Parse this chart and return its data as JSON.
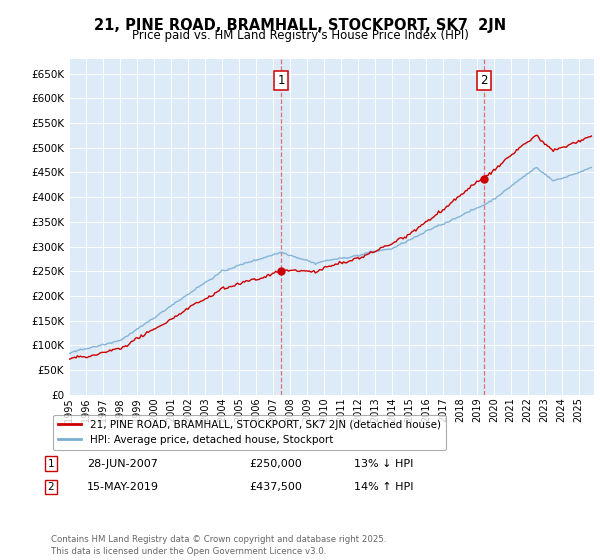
{
  "title": "21, PINE ROAD, BRAMHALL, STOCKPORT, SK7  2JN",
  "subtitle": "Price paid vs. HM Land Registry's House Price Index (HPI)",
  "line1_label": "21, PINE ROAD, BRAMHALL, STOCKPORT, SK7 2JN (detached house)",
  "line2_label": "HPI: Average price, detached house, Stockport",
  "line1_color": "#cc0000",
  "line2_color": "#7aafd4",
  "background_color": "#ddeaf7",
  "grid_color": "#ffffff",
  "annotation1": {
    "num": "1",
    "date": "28-JUN-2007",
    "price": "£250,000",
    "hpi": "13% ↓ HPI",
    "year": 2007.47
  },
  "annotation2": {
    "num": "2",
    "date": "15-MAY-2019",
    "price": "£437,500",
    "hpi": "14% ↑ HPI",
    "year": 2019.37
  },
  "footer": "Contains HM Land Registry data © Crown copyright and database right 2025.\nThis data is licensed under the Open Government Licence v3.0.",
  "ylim": [
    0,
    680000
  ],
  "yticks": [
    0,
    50000,
    100000,
    150000,
    200000,
    250000,
    300000,
    350000,
    400000,
    450000,
    500000,
    550000,
    600000,
    650000
  ],
  "xmin": 1995,
  "xmax": 2025.9,
  "xlabel_years": [
    1995,
    1996,
    1997,
    1998,
    1999,
    2000,
    2001,
    2002,
    2003,
    2004,
    2005,
    2006,
    2007,
    2008,
    2009,
    2010,
    2011,
    2012,
    2013,
    2014,
    2015,
    2016,
    2017,
    2018,
    2019,
    2020,
    2021,
    2022,
    2023,
    2024,
    2025
  ],
  "price_sale1": 250000,
  "price_sale2": 437500
}
